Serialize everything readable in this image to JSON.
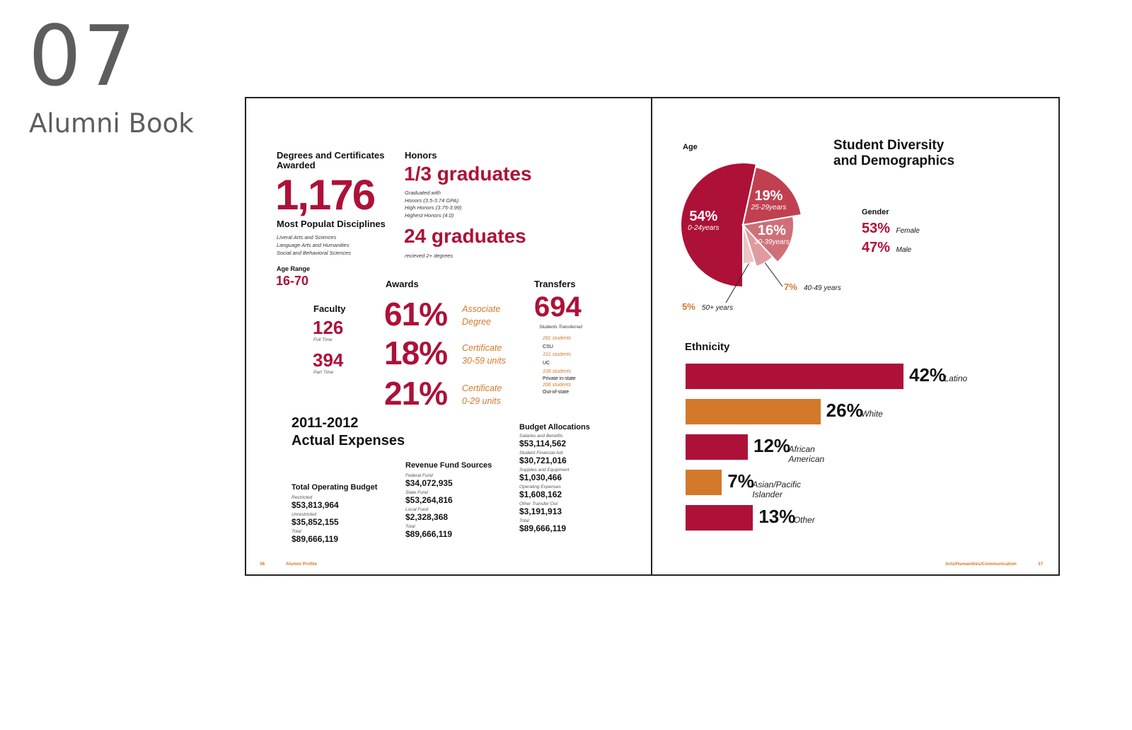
{
  "portfolio": {
    "number": "07",
    "title": "Alumni Book"
  },
  "left": {
    "degrees": {
      "title": "Degrees and Certificates Awarded",
      "value": "1,176"
    },
    "disciplines": {
      "title": "Most Populat Disciplines",
      "items": [
        "Liveral Arts and Sciences",
        "Language Arts and Humanities",
        "Social and Behavioral Sciences"
      ]
    },
    "age_range": {
      "title": "Age Range",
      "value": "16-70"
    },
    "honors": {
      "title": "Honors",
      "value": "1/3 graduates",
      "lines": [
        "Graduated with",
        "Honors (3.5-3.74 GPA)",
        "High Honors (3.75-3.99)",
        "Highest Honors (4.0)"
      ],
      "value2": "24 graduates",
      "caption2": "recieved 2+ degrees"
    },
    "faculty": {
      "title": "Faculty",
      "full_value": "126",
      "full_label": "Full Time",
      "part_value": "394",
      "part_label": "Part Time"
    },
    "awards": {
      "title": "Awards",
      "items": [
        {
          "pct": "61%",
          "line1": "Associate",
          "line2": "Degree"
        },
        {
          "pct": "18%",
          "line1": "Certificate",
          "line2": "30-59 units"
        },
        {
          "pct": "21%",
          "line1": "Certificate",
          "line2": "0-29 units"
        }
      ]
    },
    "transfers": {
      "title": "Transfers",
      "value": "694",
      "caption": "Students Transferred",
      "items": [
        {
          "count": "281 students",
          "dest": "CSU"
        },
        {
          "count": "101 students",
          "dest": "UC"
        },
        {
          "count": "106 students",
          "dest": "Private in-state"
        },
        {
          "count": "206 students",
          "dest": "Out-of-state"
        }
      ]
    },
    "expenses": {
      "line1": "2011-2012",
      "line2": "Actual Expenses"
    },
    "operating_budget": {
      "title": "Total Operating Budget",
      "items": [
        {
          "label": "Restricted",
          "value": "$53,813,964"
        },
        {
          "label": "Unrestricted",
          "value": "$35,852,155"
        }
      ],
      "total_label": "Total",
      "total_value": "$89,666,119"
    },
    "revenue": {
      "title": "Revenue Fund Sources",
      "items": [
        {
          "label": "Federal Fund",
          "value": "$34,072,935"
        },
        {
          "label": "State Fund",
          "value": "$53,264,816"
        },
        {
          "label": "Local Fund",
          "value": "$2,328,368"
        }
      ],
      "total_label": "Total",
      "total_value": "$89,666,119"
    },
    "budget": {
      "title": "Budget Allocations",
      "items": [
        {
          "label": "Salaries and Benefits",
          "value": "$53,114,562"
        },
        {
          "label": "Student Financial Aid",
          "value": "$30,721,016"
        },
        {
          "label": "Supplies and Equipment",
          "value": "$1,030,466"
        },
        {
          "label": "Operating Expenses",
          "value": "$1,608,162"
        },
        {
          "label": "Other Transfer Out",
          "value": "$3,191,913"
        }
      ],
      "total_label": "Total",
      "total_value": "$89,666,119"
    },
    "footer": {
      "page": "36",
      "section": "Alumni Profile"
    }
  },
  "right": {
    "heading_line1": "Student Diversity",
    "heading_line2": "and Demographics",
    "age_title": "Age",
    "gender": {
      "title": "Gender",
      "items": [
        {
          "pct": "53%",
          "label": "Female"
        },
        {
          "pct": "47%",
          "label": "Male"
        }
      ]
    },
    "ethnicity_title": "Ethnicity",
    "footer": {
      "section": "Arts/Humanities/Communication",
      "page": "37"
    }
  },
  "chart_data": [
    {
      "type": "pie",
      "title": "Age",
      "slices": [
        {
          "label": "0-24years",
          "pct_text": "54%",
          "value": 54,
          "color": "#ad1138"
        },
        {
          "label": "25-29years",
          "pct_text": "19%",
          "value": 19,
          "color": "#c1404f"
        },
        {
          "label": "30-39years",
          "pct_text": "16%",
          "value": 16,
          "color": "#cf6f78"
        },
        {
          "label": "40-49 years",
          "pct_text": "7%",
          "value": 7,
          "color": "#de9ca0"
        },
        {
          "label": "50+ years",
          "pct_text": "5%",
          "value": 5,
          "color": "#ecc5c6"
        }
      ]
    },
    {
      "type": "bar",
      "title": "Ethnicity",
      "categories": [
        "Latino",
        "White",
        "African American",
        "Asian/Pacific Islander",
        "Other"
      ],
      "values": [
        42,
        26,
        12,
        7,
        13
      ],
      "pct_text": [
        "42%",
        "26%",
        "12%",
        "7%",
        "13%"
      ],
      "colors": [
        "#ad1138",
        "#d2792a",
        "#ad1138",
        "#d2792a",
        "#ad1138"
      ]
    }
  ]
}
